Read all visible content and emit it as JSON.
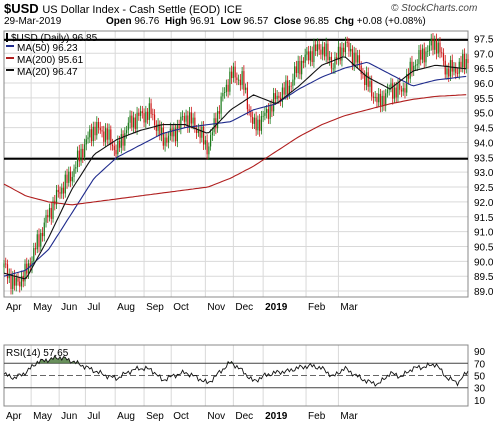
{
  "header": {
    "symbol": "$USD",
    "name": "US Dollar Index - Cash Settle (EOD)",
    "exchange": "ICE",
    "credit": "© StockCharts.com",
    "date": "29-Mar-2019",
    "open_label": "Open",
    "open": "96.76",
    "high_label": "High",
    "high": "96.91",
    "low_label": "Low",
    "low": "96.57",
    "close_label": "Close",
    "close": "96.85",
    "chg_label": "Chg",
    "chg": "+0.08 (+0.08%)"
  },
  "legend": {
    "price": "$USD (Daily) 96.85",
    "ma50": "MA(50) 96.23",
    "ma200": "MA(200) 95.61",
    "ma20": "MA(20) 96.47"
  },
  "rsi_label": "RSI(14) 57.65",
  "colors": {
    "up": "#1a7a1a",
    "down": "#cc1111",
    "ma50": "#1e2a8c",
    "ma200": "#b01e1e",
    "ma20": "#111111",
    "grid": "#d9d9d9",
    "hline": "#000000",
    "rsi_fill": "#4f7d3f"
  },
  "chart_data": [
    {
      "type": "candlestick",
      "title": "$USD (Daily) 96.85",
      "x_labels": [
        "Apr",
        "May",
        "Jun",
        "Jul",
        "Aug",
        "Sep",
        "Oct",
        "Nov",
        "Dec",
        "2019",
        "Feb",
        "Mar"
      ],
      "y_ticks": [
        89.0,
        89.5,
        90.0,
        90.5,
        91.0,
        91.5,
        92.0,
        92.5,
        93.0,
        93.5,
        94.0,
        94.5,
        95.0,
        95.5,
        96.0,
        96.5,
        97.0,
        97.5
      ],
      "ylim": [
        88.8,
        97.75
      ],
      "horizontal_lines": [
        97.45,
        93.45
      ],
      "grid": true,
      "series": [
        {
          "name": "$USD (Daily) 96.85",
          "x": [
            0,
            12,
            25,
            38,
            51,
            64,
            77,
            90,
            103,
            116,
            129,
            142,
            155,
            168,
            181,
            194,
            207,
            220,
            233,
            246,
            259,
            272,
            285,
            298,
            311,
            324,
            337,
            350,
            363,
            376,
            389,
            402,
            415,
            428,
            441,
            454,
            467,
            480,
            493,
            506,
            519,
            530
          ],
          "values": [
            89.8,
            89.2,
            89.6,
            90.6,
            91.6,
            92.4,
            92.9,
            93.8,
            94.5,
            94.3,
            93.7,
            94.6,
            94.9,
            95.0,
            94.1,
            94.3,
            94.9,
            94.5,
            93.8,
            95.2,
            96.3,
            96.1,
            94.5,
            94.9,
            95.5,
            95.8,
            96.6,
            97.0,
            97.2,
            96.6,
            97.3,
            96.8,
            96.0,
            95.3,
            95.8,
            95.7,
            96.6,
            97.0,
            97.4,
            96.4,
            96.5,
            96.85
          ]
        },
        {
          "name": "MA(50) 96.23",
          "x": [
            0,
            25,
            51,
            77,
            103,
            129,
            155,
            181,
            207,
            233,
            259,
            285,
            311,
            337,
            363,
            389,
            415,
            441,
            467,
            493,
            530
          ],
          "values": [
            89.5,
            89.7,
            90.4,
            91.6,
            92.8,
            93.5,
            93.9,
            94.3,
            94.5,
            94.6,
            94.7,
            95.1,
            95.3,
            95.8,
            96.2,
            96.5,
            96.7,
            96.3,
            95.9,
            96.1,
            96.23
          ]
        },
        {
          "name": "MA(200) 95.61",
          "x": [
            0,
            25,
            51,
            77,
            103,
            129,
            155,
            181,
            207,
            233,
            259,
            285,
            311,
            337,
            363,
            389,
            415,
            441,
            467,
            493,
            530
          ],
          "values": [
            92.6,
            92.2,
            92.0,
            91.9,
            92.0,
            92.1,
            92.2,
            92.3,
            92.4,
            92.5,
            92.8,
            93.2,
            93.7,
            94.2,
            94.6,
            94.9,
            95.1,
            95.3,
            95.45,
            95.55,
            95.61
          ]
        },
        {
          "name": "MA(20) 96.47",
          "x": [
            0,
            25,
            51,
            77,
            103,
            129,
            155,
            181,
            207,
            233,
            259,
            285,
            311,
            337,
            363,
            389,
            415,
            441,
            467,
            493,
            530
          ],
          "values": [
            89.6,
            89.4,
            90.8,
            92.4,
            93.6,
            94.1,
            94.4,
            94.6,
            94.6,
            94.3,
            95.1,
            95.6,
            95.3,
            95.9,
            96.6,
            96.9,
            96.2,
            95.8,
            96.4,
            96.6,
            96.47
          ]
        }
      ]
    },
    {
      "type": "line",
      "title": "RSI(14) 57.65",
      "x_labels": [
        "Apr",
        "May",
        "Jun",
        "Jul",
        "Aug",
        "Sep",
        "Oct",
        "Nov",
        "Dec",
        "2019",
        "Feb",
        "Mar"
      ],
      "y_ticks": [
        10,
        30,
        50,
        70,
        90
      ],
      "ylim": [
        0,
        100
      ],
      "reference_lines": [
        30,
        50,
        70
      ],
      "series": [
        {
          "name": "RSI(14) 57.65",
          "x": [
            0,
            12,
            25,
            38,
            51,
            64,
            77,
            90,
            103,
            116,
            129,
            142,
            155,
            168,
            181,
            194,
            207,
            220,
            233,
            246,
            259,
            272,
            285,
            298,
            311,
            324,
            337,
            350,
            363,
            376,
            389,
            402,
            415,
            428,
            441,
            454,
            467,
            480,
            493,
            506,
            519,
            530
          ],
          "values": [
            52,
            46,
            55,
            72,
            76,
            80,
            74,
            66,
            58,
            50,
            45,
            56,
            62,
            60,
            42,
            50,
            55,
            47,
            37,
            55,
            72,
            58,
            40,
            50,
            55,
            57,
            63,
            66,
            62,
            48,
            62,
            50,
            40,
            36,
            54,
            48,
            62,
            64,
            69,
            46,
            38,
            57.65
          ]
        }
      ]
    }
  ]
}
